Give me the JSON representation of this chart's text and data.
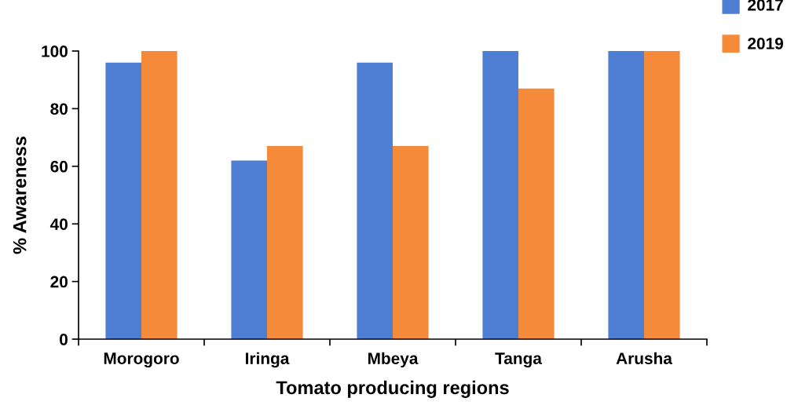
{
  "chart_data": {
    "type": "bar",
    "xlabel": "Tomato producing regions",
    "ylabel": "% Awareness",
    "categories": [
      "Morogoro",
      "Iringa",
      "Mbeya",
      "Tanga",
      "Arusha"
    ],
    "series": [
      {
        "name": "2017",
        "color": "#4e7fd3",
        "values": [
          96,
          62,
          96,
          100,
          100
        ]
      },
      {
        "name": "2019",
        "color": "#f58b3a",
        "values": [
          100,
          67,
          67,
          87,
          100
        ]
      }
    ],
    "ylim": [
      0,
      100
    ],
    "yticks": [
      0,
      20,
      40,
      60,
      80,
      100
    ],
    "grid": false,
    "legend": "top right"
  }
}
